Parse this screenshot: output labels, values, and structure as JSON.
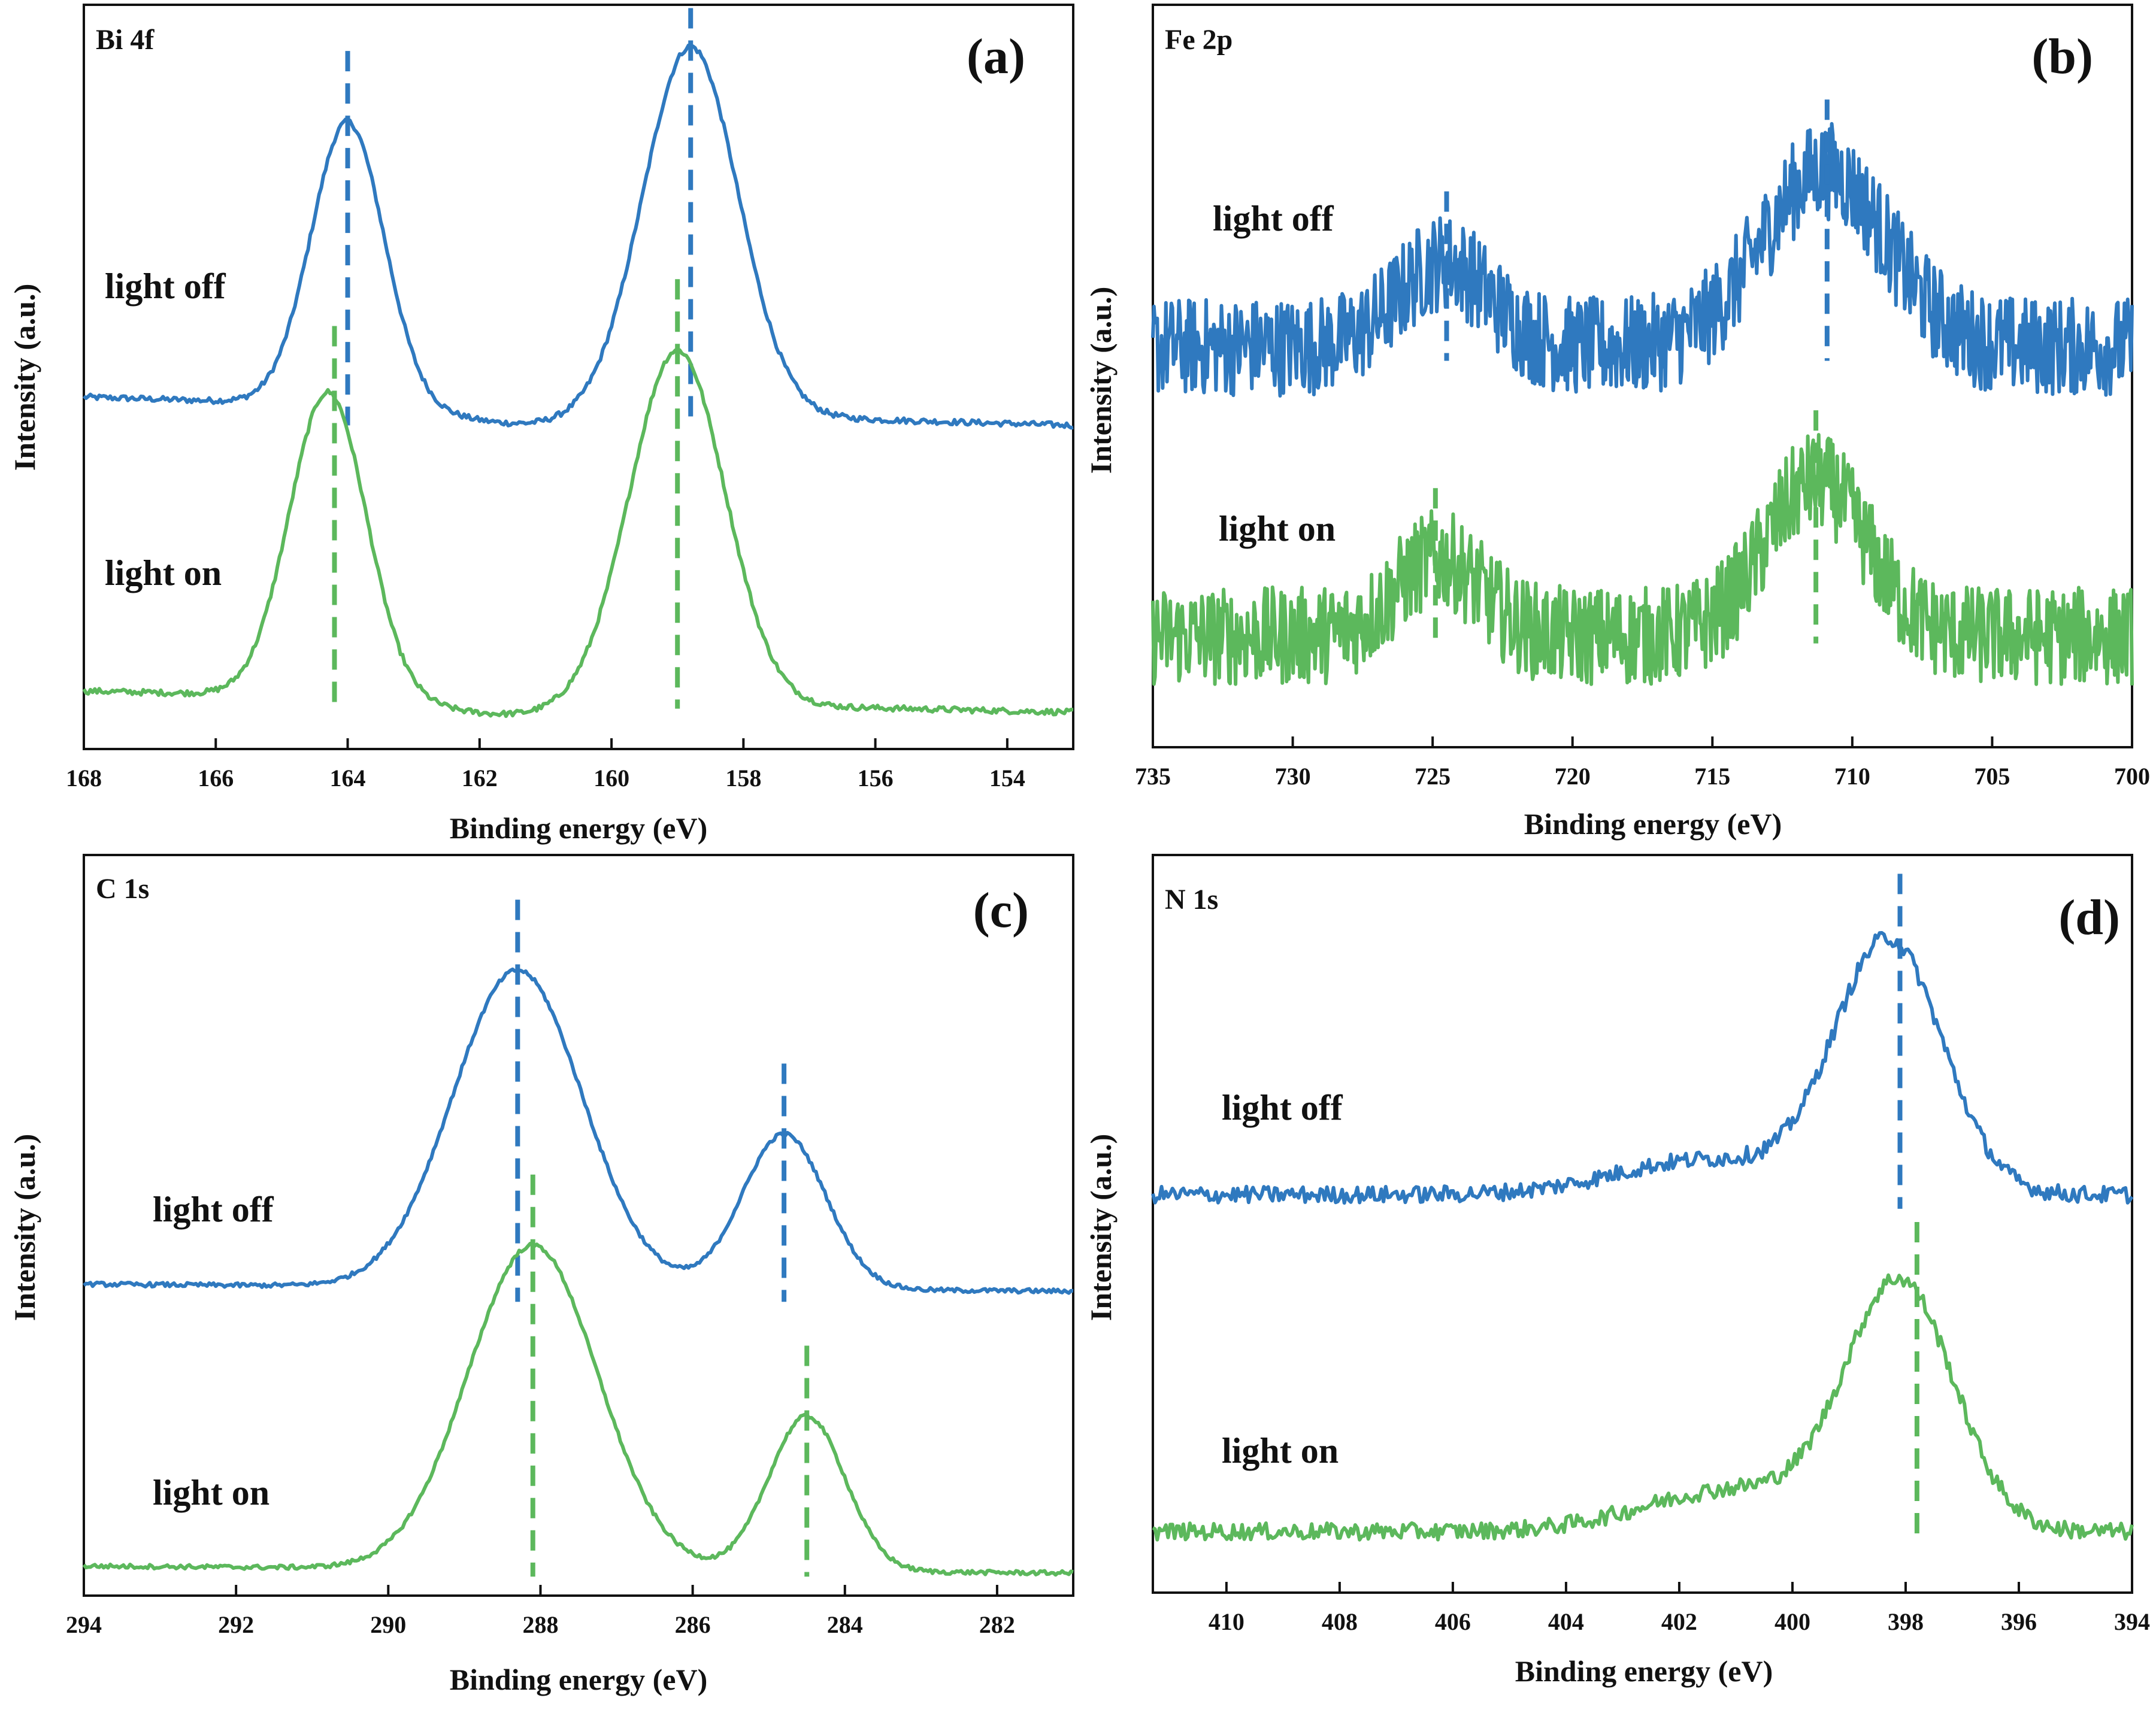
{
  "colors": {
    "light_off": "#2f79bf",
    "light_on": "#5cb85c",
    "axis": "#111111"
  },
  "chart_data": [
    {
      "type": "line",
      "panel": "(a)",
      "title": "Bi 4f",
      "xlabel": "Binding energy (eV)",
      "ylabel": "Intensity (a.u.)",
      "xlim": [
        168,
        153
      ],
      "xticks": [
        168,
        166,
        164,
        162,
        160,
        158,
        156,
        154
      ],
      "noise": 0.004,
      "series": [
        {
          "name": "light off",
          "baseline": 0.46,
          "tilt": 0.04,
          "valley": -0.02,
          "peaks": [
            {
              "center": 164.0,
              "height": 0.4,
              "width": 0.55
            },
            {
              "center": 158.8,
              "height": 0.52,
              "width": 0.72
            }
          ],
          "ref_line": 164.0,
          "ref_line_2": 158.8
        },
        {
          "name": "light on",
          "baseline": 0.05,
          "tilt": 0.03,
          "valley": -0.02,
          "peaks": [
            {
              "center": 164.3,
              "height": 0.43,
              "width": 0.58
            },
            {
              "center": 159.0,
              "height": 0.5,
              "width": 0.72
            }
          ],
          "ref_line": 164.2,
          "ref_line_2": 159.0
        }
      ]
    },
    {
      "type": "line",
      "panel": "(b)",
      "title": "Fe 2p",
      "xlabel": "Binding energy (eV)",
      "ylabel": "Intensity (a.u.)",
      "xlim": [
        735,
        700
      ],
      "xticks": [
        735,
        730,
        725,
        720,
        715,
        710,
        705,
        700
      ],
      "noise": 0.07,
      "series": [
        {
          "name": "light off",
          "baseline": 0.55,
          "tilt": 0.0,
          "valley": 0.0,
          "peaks": [
            {
              "center": 724.6,
              "height": 0.12,
              "width": 1.6
            },
            {
              "center": 711.0,
              "height": 0.25,
              "width": 2.2
            }
          ],
          "ref_line": 724.5,
          "ref_line_2": 710.9
        },
        {
          "name": "light on",
          "baseline": 0.14,
          "tilt": 0.0,
          "valley": 0.0,
          "peaks": [
            {
              "center": 724.8,
              "height": 0.11,
              "width": 1.5
            },
            {
              "center": 711.3,
              "height": 0.22,
              "width": 1.8
            }
          ],
          "ref_line": 724.9,
          "ref_line_2": 711.3
        }
      ]
    },
    {
      "type": "line",
      "panel": "(c)",
      "title": "C 1s",
      "xlabel": "Binding energy (eV)",
      "ylabel": "Intensity (a.u.)",
      "xlim": [
        294,
        281
      ],
      "xticks": [
        294,
        292,
        290,
        288,
        286,
        284,
        282
      ],
      "noise": 0.003,
      "series": [
        {
          "name": "light off",
          "baseline": 0.42,
          "tilt": 0.01,
          "valley": 0.0,
          "peaks": [
            {
              "center": 288.3,
              "height": 0.45,
              "width": 0.85
            },
            {
              "center": 284.8,
              "height": 0.22,
              "width": 0.55
            }
          ],
          "ref_line": 288.3,
          "ref_line_2": 284.8
        },
        {
          "name": "light on",
          "baseline": 0.02,
          "tilt": 0.01,
          "valley": 0.0,
          "peaks": [
            {
              "center": 288.1,
              "height": 0.46,
              "width": 0.85
            },
            {
              "center": 284.5,
              "height": 0.22,
              "width": 0.5
            }
          ],
          "ref_line": 288.1,
          "ref_line_2": 284.5
        }
      ]
    },
    {
      "type": "line",
      "panel": "(d)",
      "title": "N 1s",
      "xlabel": "Binding energy (eV)",
      "ylabel": "Intensity (a.u.)",
      "xlim": [
        411.3,
        394
      ],
      "xticks": [
        410,
        408,
        406,
        404,
        402,
        400,
        398,
        396,
        394
      ],
      "noise": 0.012,
      "series": [
        {
          "name": "light off",
          "baseline": 0.55,
          "tilt": 0.0,
          "valley": 0.0,
          "peaks": [
            {
              "center": 398.3,
              "height": 0.36,
              "width": 0.95
            },
            {
              "center": 401.5,
              "height": 0.05,
              "width": 1.6
            }
          ],
          "ref_line": 398.1
        },
        {
          "name": "light on",
          "baseline": 0.07,
          "tilt": 0.0,
          "valley": 0.0,
          "peaks": [
            {
              "center": 398.1,
              "height": 0.35,
              "width": 0.95
            },
            {
              "center": 401.0,
              "height": 0.06,
              "width": 1.6
            }
          ],
          "ref_line": 397.8
        }
      ]
    }
  ]
}
